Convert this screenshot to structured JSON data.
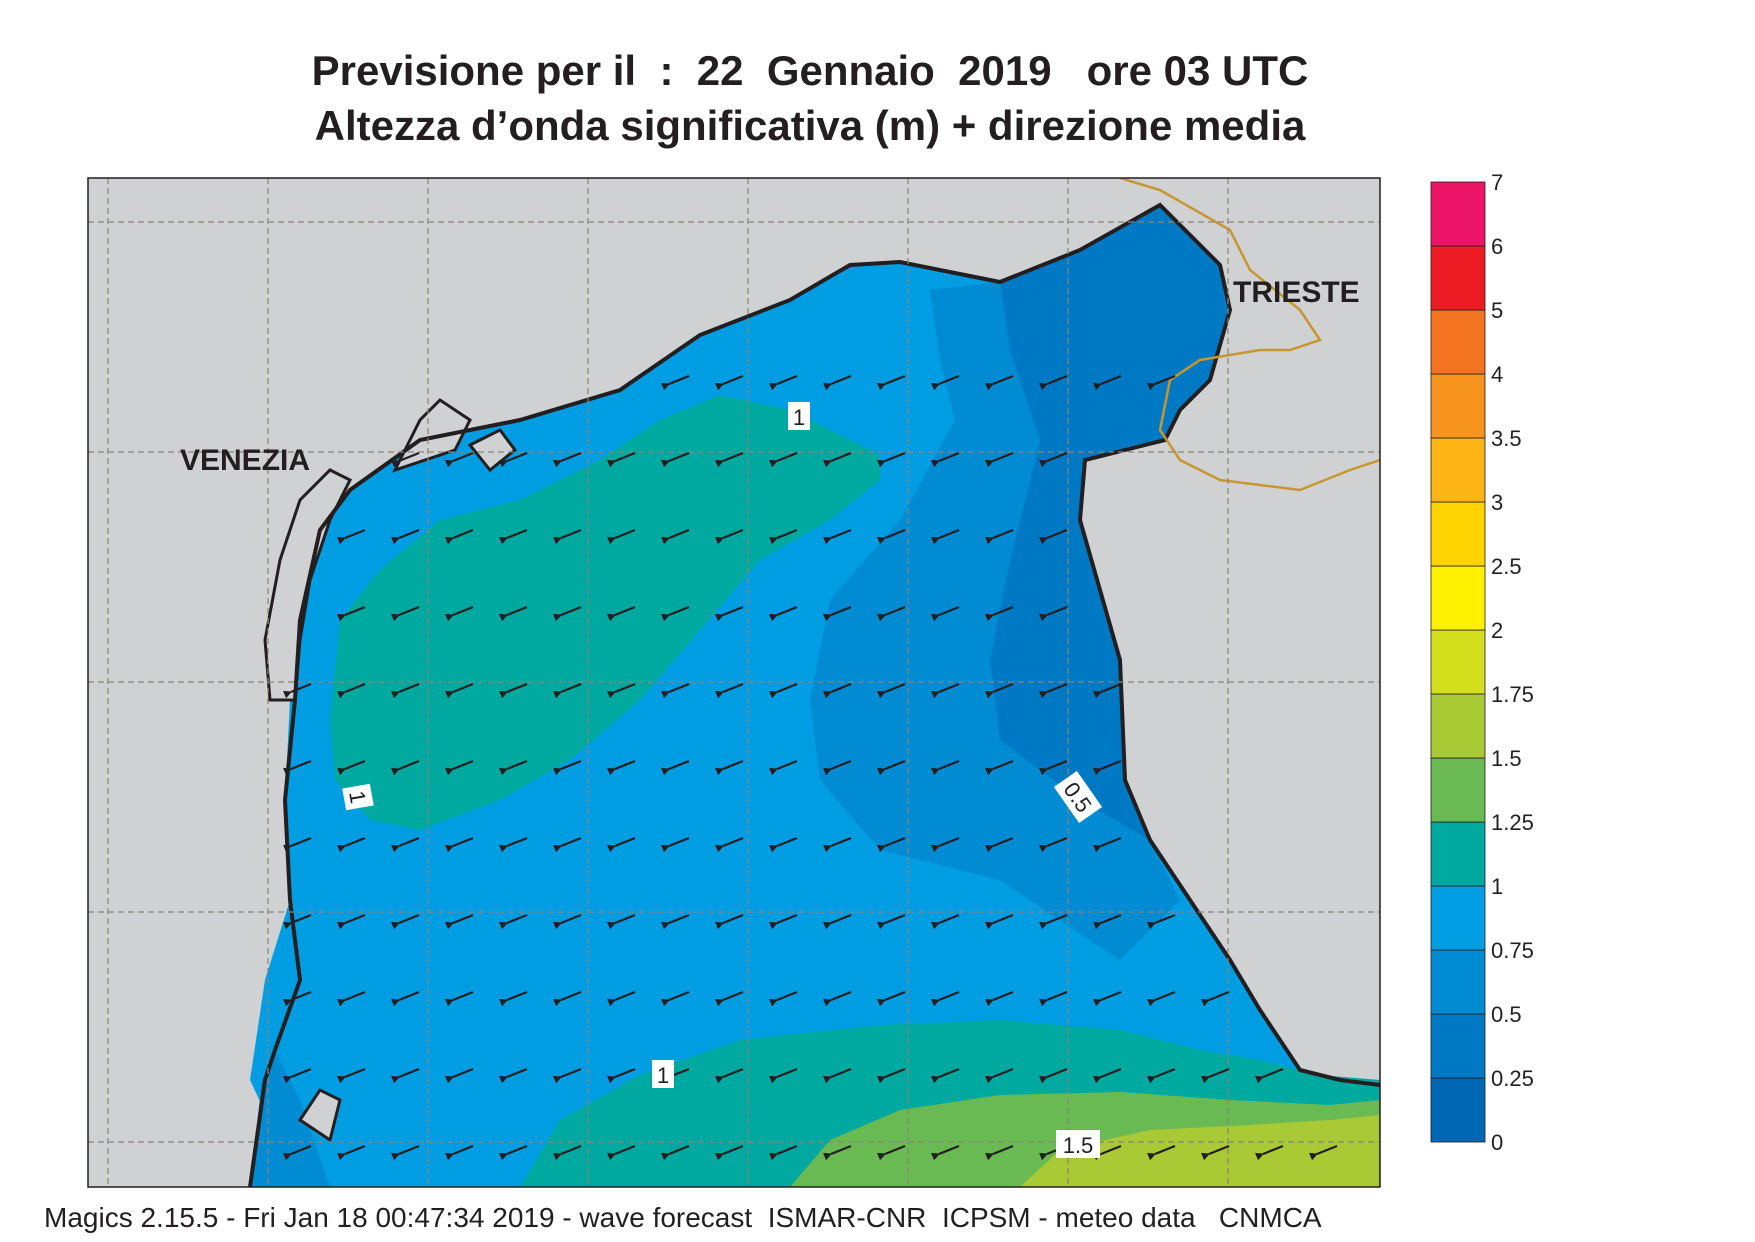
{
  "header": {
    "title_line1": "Previsione per il  :  22  Gennaio  2019   ore 03 UTC",
    "title_line2": "Altezza d’onda significativa (m) + direzione media"
  },
  "places": {
    "venezia": "VENEZIA",
    "trieste": "TRIESTE"
  },
  "contour_labels": {
    "north": "1",
    "west": "1",
    "east": "0.5",
    "south": "1",
    "south_east": "1.5"
  },
  "legend": {
    "ticks": [
      "0",
      "0.25",
      "0.5",
      "0.75",
      "1",
      "1.25",
      "1.5",
      "1.75",
      "2",
      "2.5",
      "3",
      "3.5",
      "4",
      "5",
      "6",
      "7"
    ],
    "colors": [
      "#0067b5",
      "#0079c4",
      "#008bd3",
      "#009de2",
      "#00a9a0",
      "#69ba52",
      "#a9c935",
      "#d4e01e",
      "#fff200",
      "#ffd400",
      "#fdb515",
      "#f7941d",
      "#f47421",
      "#ed1c24",
      "#ec1467"
    ]
  },
  "colors": {
    "land": "#d0d1d3",
    "coast": "#231f20",
    "border": "#c8962e",
    "arrow": "#231f20"
  },
  "footer": "Magics 2.15.5 - Fri Jan 18 00:47:34 2019 - wave forecast  ISMAR-CNR  ICPSM - meteo data   CNMCA"
}
